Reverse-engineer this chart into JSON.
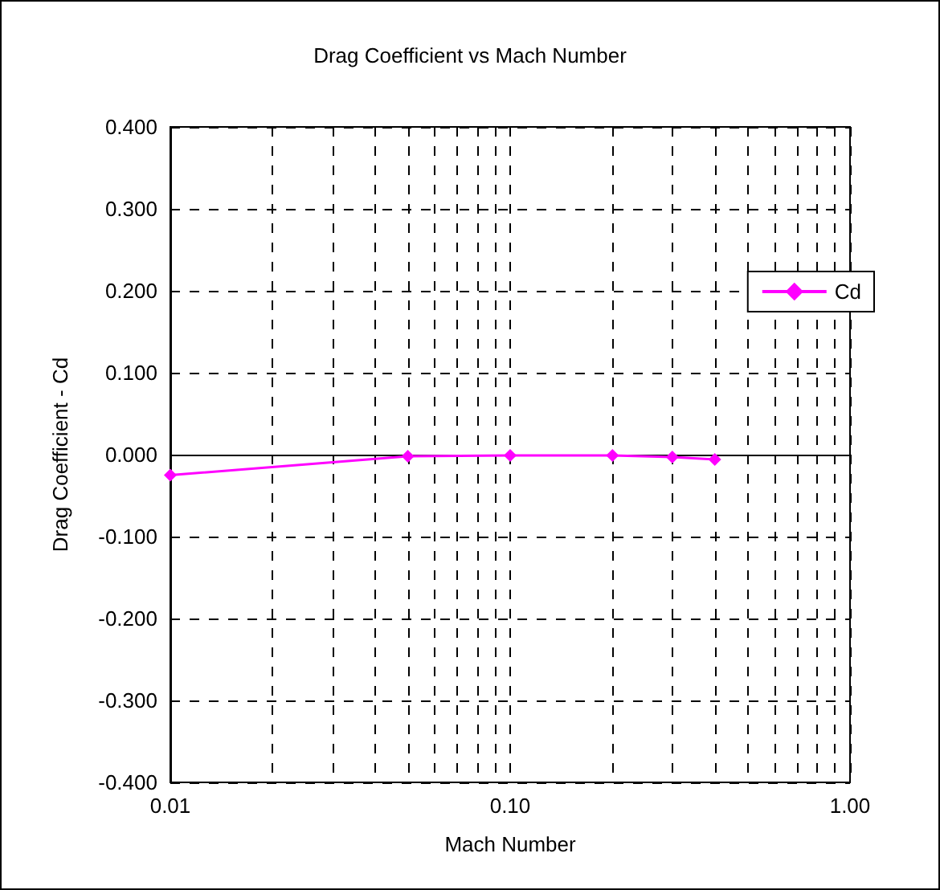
{
  "chart_data": {
    "type": "line",
    "title": "Drag Coefficient vs Mach Number",
    "xlabel": "Mach Number",
    "ylabel": "Drag Coefficient - Cd",
    "x": [
      0.01,
      0.05,
      0.1,
      0.2,
      0.3,
      0.4
    ],
    "series": [
      {
        "name": "Cd",
        "color": "#ff00ff",
        "values": [
          -0.025,
          -0.002,
          -0.001,
          -0.001,
          -0.003,
          -0.006
        ]
      }
    ],
    "log": "x",
    "xlim": [
      0.01,
      1
    ],
    "xticks": [
      {
        "value": 0.01,
        "label": "0.01"
      },
      {
        "value": 0.1,
        "label": "0.10"
      },
      {
        "value": 1,
        "label": "1.00"
      }
    ],
    "ylim": [
      -0.4,
      0.4
    ],
    "yticks": [
      {
        "value": -0.4,
        "label": "-0.400"
      },
      {
        "value": -0.3,
        "label": "-0.300"
      },
      {
        "value": -0.2,
        "label": "-0.200"
      },
      {
        "value": -0.1,
        "label": "-0.100"
      },
      {
        "value": 0,
        "label": "0.000"
      },
      {
        "value": 0.1,
        "label": "0.100"
      },
      {
        "value": 0.2,
        "label": "0.200"
      },
      {
        "value": 0.3,
        "label": "0.300"
      },
      {
        "value": 0.4,
        "label": "0.400"
      }
    ],
    "grid": true,
    "legend": "right",
    "marker": "diamond",
    "line_style": "solid"
  }
}
